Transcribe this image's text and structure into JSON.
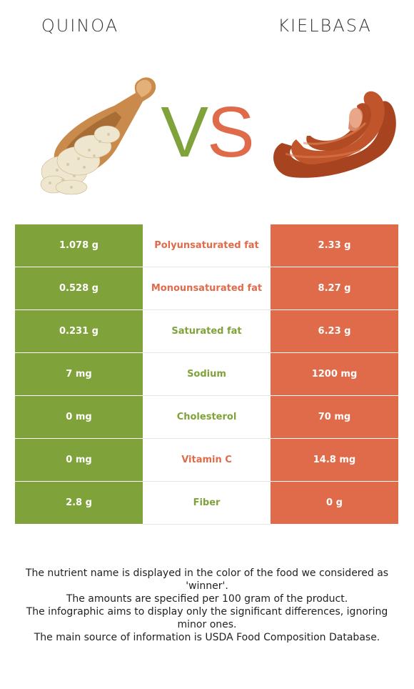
{
  "header": {
    "left_food": "QUINOA",
    "right_food": "KIELBASA",
    "vs_v": "V",
    "vs_s": "S"
  },
  "colors": {
    "left_accent": "#80a23a",
    "right_accent": "#e06b4b"
  },
  "rows": [
    {
      "left": "1.078 g",
      "nutrient": "Polyunsaturated fat",
      "right": "2.33 g",
      "winner": "right"
    },
    {
      "left": "0.528 g",
      "nutrient": "Monounsaturated fat",
      "right": "8.27 g",
      "winner": "right"
    },
    {
      "left": "0.231 g",
      "nutrient": "Saturated fat",
      "right": "6.23 g",
      "winner": "left"
    },
    {
      "left": "7 mg",
      "nutrient": "Sodium",
      "right": "1200 mg",
      "winner": "left"
    },
    {
      "left": "0 mg",
      "nutrient": "Cholesterol",
      "right": "70 mg",
      "winner": "left"
    },
    {
      "left": "0 mg",
      "nutrient": "Vitamin C",
      "right": "14.8 mg",
      "winner": "right"
    },
    {
      "left": "2.8 g",
      "nutrient": "Fiber",
      "right": "0 g",
      "winner": "left"
    }
  ],
  "notes": [
    "The nutrient name is displayed in the color of the food we considered as 'winner'.",
    "The amounts are specified per 100 gram of the product.",
    "The infographic aims to display only the significant differences, ignoring minor ones.",
    "The main source of information is USDA Food Composition Database."
  ]
}
